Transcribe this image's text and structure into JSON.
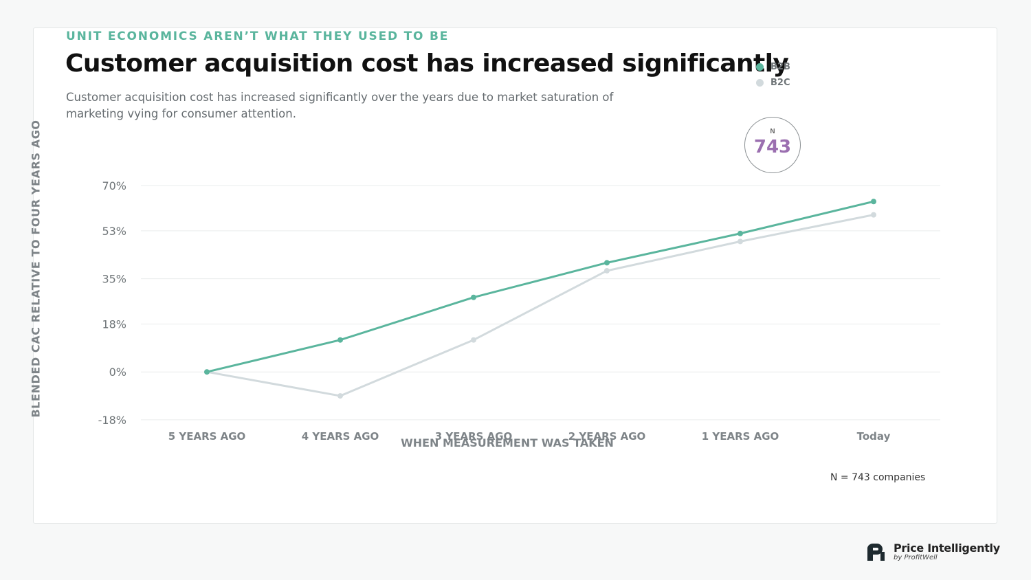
{
  "header": {
    "eyebrow": "UNIT ECONOMICS AREN’T WHAT THEY USED TO BE",
    "title": "Customer acquisition cost has increased significantly",
    "subtitle": "Customer acquisition cost has increased significantly over the years due to market saturation of marketing vying for consumer attention."
  },
  "badge": {
    "label": "N",
    "value": "743",
    "color": "#9b6fb0"
  },
  "footnote": "N = 743 companies",
  "brand": {
    "name": "Price Intelligently",
    "sub": "by ProfitWell"
  },
  "chart_data": {
    "type": "line",
    "xlabel": "WHEN MEASUREMENT WAS TAKEN",
    "ylabel": "BLENDED CAC RELATIVE TO FOUR YEARS AGO",
    "categories": [
      "5 YEARS AGO",
      "4 YEARS AGO",
      "3 YEARS AGO",
      "2 YEARS AGO",
      "1 YEARS AGO",
      "Today"
    ],
    "y_ticks": [
      -18,
      0,
      18,
      35,
      53,
      70
    ],
    "y_tick_labels": [
      "-18%",
      "0%",
      "18%",
      "35%",
      "53%",
      "70%"
    ],
    "ylim": [
      -17.5,
      70
    ],
    "grid": true,
    "legend_position": "top-right",
    "series": [
      {
        "name": "B2B",
        "color": "#5ab59d",
        "values": [
          0,
          12,
          28,
          41,
          52,
          64
        ]
      },
      {
        "name": "B2C",
        "color": "#d2dadd",
        "values": [
          0,
          -9,
          12,
          38,
          49,
          59
        ]
      }
    ]
  }
}
